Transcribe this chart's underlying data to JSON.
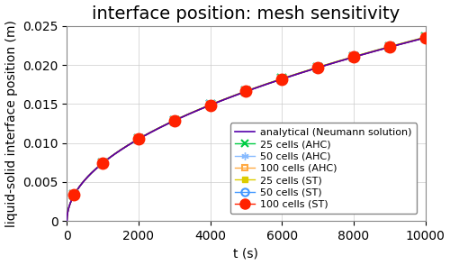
{
  "title": "interface position: mesh sensitivity",
  "xlabel": "t (s)",
  "ylabel": "liquid-solid interface position (m)",
  "xlim": [
    0,
    10000
  ],
  "ylim": [
    0,
    0.025
  ],
  "yticks": [
    0,
    0.005,
    0.01,
    0.015,
    0.02,
    0.025
  ],
  "xticks": [
    0,
    2000,
    4000,
    6000,
    8000,
    10000
  ],
  "background_color": "#ffffff",
  "analytical_color": "#5500aa",
  "ahc25_color": "#00cc44",
  "ahc50_color": "#88bbff",
  "ahc100_color": "#ffaa44",
  "st25_color": "#ddcc00",
  "st50_color": "#4499ff",
  "st100_color": "#ff2200",
  "legend_entries": [
    "analytical (Neumann solution)",
    "25 cells (AHC)",
    "50 cells (AHC)",
    "100 cells (AHC)",
    "25 cells (ST)",
    "50 cells (ST)",
    "100 cells (ST)"
  ],
  "stefan_constant": 0.000235,
  "marker_times": [
    200,
    1000,
    2000,
    3000,
    4000,
    5000,
    6000,
    7000,
    8000,
    9000,
    10000
  ],
  "title_fontsize": 14,
  "label_fontsize": 10,
  "tick_fontsize": 10,
  "legend_fontsize": 8
}
